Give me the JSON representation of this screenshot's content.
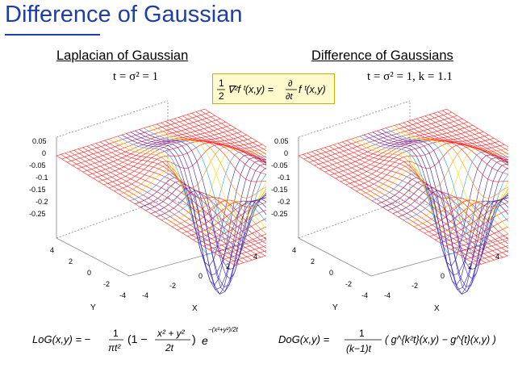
{
  "slide": {
    "title": "Difference of Gaussian"
  },
  "left": {
    "heading": "Laplacian of Gaussian",
    "param": "t = σ² = 1",
    "z_ticks": [
      "0.05",
      "0",
      "-0.05",
      "-0.1",
      "-0.15",
      "-0.2",
      "-0.25"
    ],
    "y_ticks": [
      "4",
      "2",
      "0",
      "-2",
      "-4"
    ],
    "x_ticks": [
      "-4",
      "-2",
      "0",
      "2",
      "4"
    ],
    "y_axis": "Y",
    "x_axis": "X",
    "formula": {
      "lhs": "LoG(x,y) = −",
      "num1": "1",
      "den1": "πt²",
      "mid": "(1 − ",
      "num2": "x² + y²",
      "den2": "2t",
      "close": ")",
      "base": "e",
      "exp": "−(x²+y²)/2t"
    }
  },
  "right": {
    "heading": "Difference of Gaussians",
    "param": "t = σ² = 1,  k = 1.1",
    "z_ticks": [
      "0.05",
      "0",
      "-0.05",
      "-0.1",
      "-0.15",
      "-0.2",
      "-0.25"
    ],
    "y_ticks": [
      "4",
      "2",
      "0",
      "-2",
      "-4"
    ],
    "x_ticks": [
      "-4",
      "-2",
      "0",
      "2",
      "4"
    ],
    "y_axis": "Y",
    "x_axis": "X",
    "formula": {
      "lhs": "DoG(x,y) =",
      "num1": "1",
      "den1": "(k−1)t",
      "body": "( g^{k²t}(x,y) − g^{t}(x,y) )"
    }
  },
  "center_equation": {
    "num": "1",
    "den": "2",
    "lap": "∇²f ᵗ(x,y) =",
    "d_num": "∂",
    "d_den": "∂t",
    "rhs": "f ᵗ(x,y)"
  },
  "colors": {
    "title": "#1f3ea8",
    "surface": "#ff2020",
    "box": "#fffacd"
  }
}
